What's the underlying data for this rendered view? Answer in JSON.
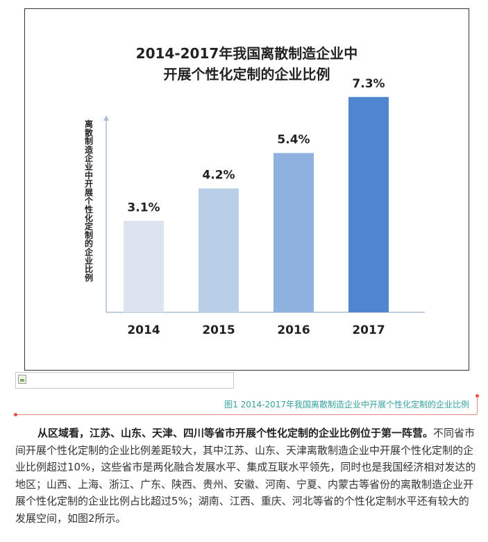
{
  "chart_data": {
    "type": "bar",
    "title": "2014-2017年我国离散制造企业中\n开展个性化定制的企业比例",
    "title_lines": [
      "2014-2017年我国离散制造企业中",
      "开展个性化定制的企业比例"
    ],
    "ylabel": "离散制造企业中开展个性化定制的企业比例",
    "categories": [
      "2014",
      "2015",
      "2016",
      "2017"
    ],
    "values": [
      3.1,
      4.2,
      5.4,
      7.3
    ],
    "value_labels": [
      "3.1%",
      "4.2%",
      "5.4%",
      "7.3%"
    ],
    "unit": "%",
    "ylim": [
      0,
      8
    ],
    "grid": false,
    "bar_colors": [
      "#dce4f0",
      "#b9cfe8",
      "#8fb1e0",
      "#4f86cf"
    ],
    "axis_color": "#a9bfd8"
  },
  "figure": {
    "broken_image": "",
    "caption": "图1  2014-2017年我国离散制造企业中开展个性化定制的企业比例",
    "caption_color": "#35a0a0",
    "accent_color": "#e8503f"
  },
  "article": {
    "lead": "从区域看，江苏、山东、天津、四川等省市开展个性化定制的企业比例位于第一阵营。",
    "body": "不同省市间开展个性化定制的企业比例差距较大，其中江苏、山东、天津离散制造企业中开展个性化定制的企业比例超过10%，这些省市是两化融合发展水平、集成互联水平领先，同时也是我国经济相对发达的地区；山西、上海、浙江、广东、陕西、贵州、安徽、河南、宁夏、内蒙古等省份的离散制造企业开展个性化定制的企业比例占比超过5%；湖南、江西、重庆、河北等省的个性化定制水平还有较大的发展空间，如图2所示。"
  }
}
